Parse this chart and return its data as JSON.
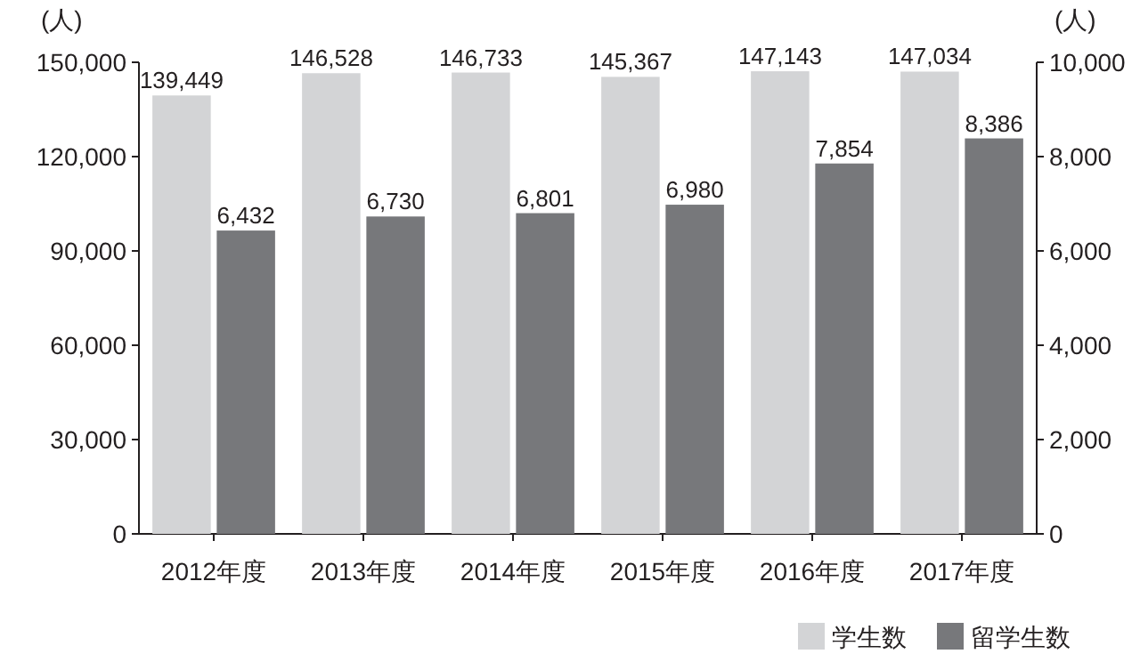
{
  "chart_data": {
    "type": "bar",
    "categories": [
      "2012年度",
      "2013年度",
      "2014年度",
      "2015年度",
      "2016年度",
      "2017年度"
    ],
    "ylabel": "(人)",
    "y2label": "(人)",
    "ylim": [
      0,
      150000
    ],
    "yticks": [
      0,
      {
        "value": 30000,
        "label": "30,000"
      },
      {
        "value": 60000,
        "label": "60,000"
      },
      {
        "value": 90000,
        "label": "90,000"
      },
      {
        "value": 120000,
        "label": "120,000"
      },
      {
        "value": 150000,
        "label": "150,000"
      }
    ],
    "y2lim": [
      0,
      10000
    ],
    "y2ticks": [
      0,
      {
        "value": 2000,
        "label": "2,000"
      },
      {
        "value": 4000,
        "label": "4,000"
      },
      {
        "value": 6000,
        "label": "6,000"
      },
      {
        "value": 8000,
        "label": "8,000"
      },
      {
        "value": 10000,
        "label": "10,000"
      }
    ],
    "legend": "bottom right",
    "series": [
      {
        "name": "学生数",
        "color": "#d3d4d6",
        "values": [
          139449,
          146528,
          146733,
          145367,
          147143,
          147034
        ],
        "value_labels": [
          "139,449",
          "146,528",
          "146,733",
          "145,367",
          "147,143",
          "147,034"
        ]
      },
      {
        "name": "留学生数",
        "color": "#77787b",
        "axis": "y2",
        "values": [
          6432,
          6730,
          6801,
          6980,
          7854,
          8386
        ],
        "value_labels": [
          "6,432",
          "6,730",
          "6,801",
          "6,980",
          "7,854",
          "8,386"
        ]
      }
    ]
  }
}
